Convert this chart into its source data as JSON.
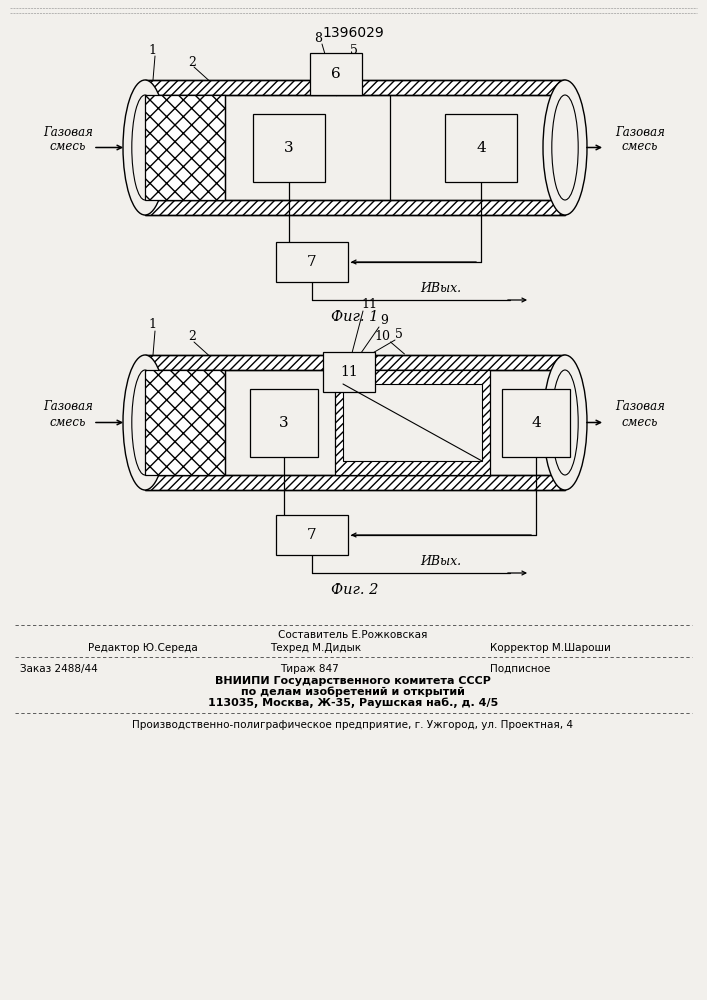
{
  "title": "1396029",
  "fig1_label": "Фиг. 1",
  "fig2_label": "Фиг. 2",
  "gas_mix": "Газовая\nсмесь",
  "u_out": "ИВых.",
  "footer_sostavitel": "Составитель Е.Рожковская",
  "footer_editor": "Редактор Ю.Середа",
  "footer_techred": "Техред М.Дидык",
  "footer_corrector": "Корректор М.Шароши",
  "footer_order": "Заказ 2488/44",
  "footer_tirazh": "Тираж 847",
  "footer_podpisnoe": "Подписное",
  "footer_vniip1": "ВНИИПИ Государственного комитета СССР",
  "footer_vniip2": "по делам изобретений и открытий",
  "footer_vniip3": "113035, Москва, Ж-35, Раушская наб., д. 4/5",
  "footer_prod": "Производственно-полиграфическое предприятие, г. Ужгород, ул. Проектная, 4",
  "bg_color": "#f2f0ec"
}
